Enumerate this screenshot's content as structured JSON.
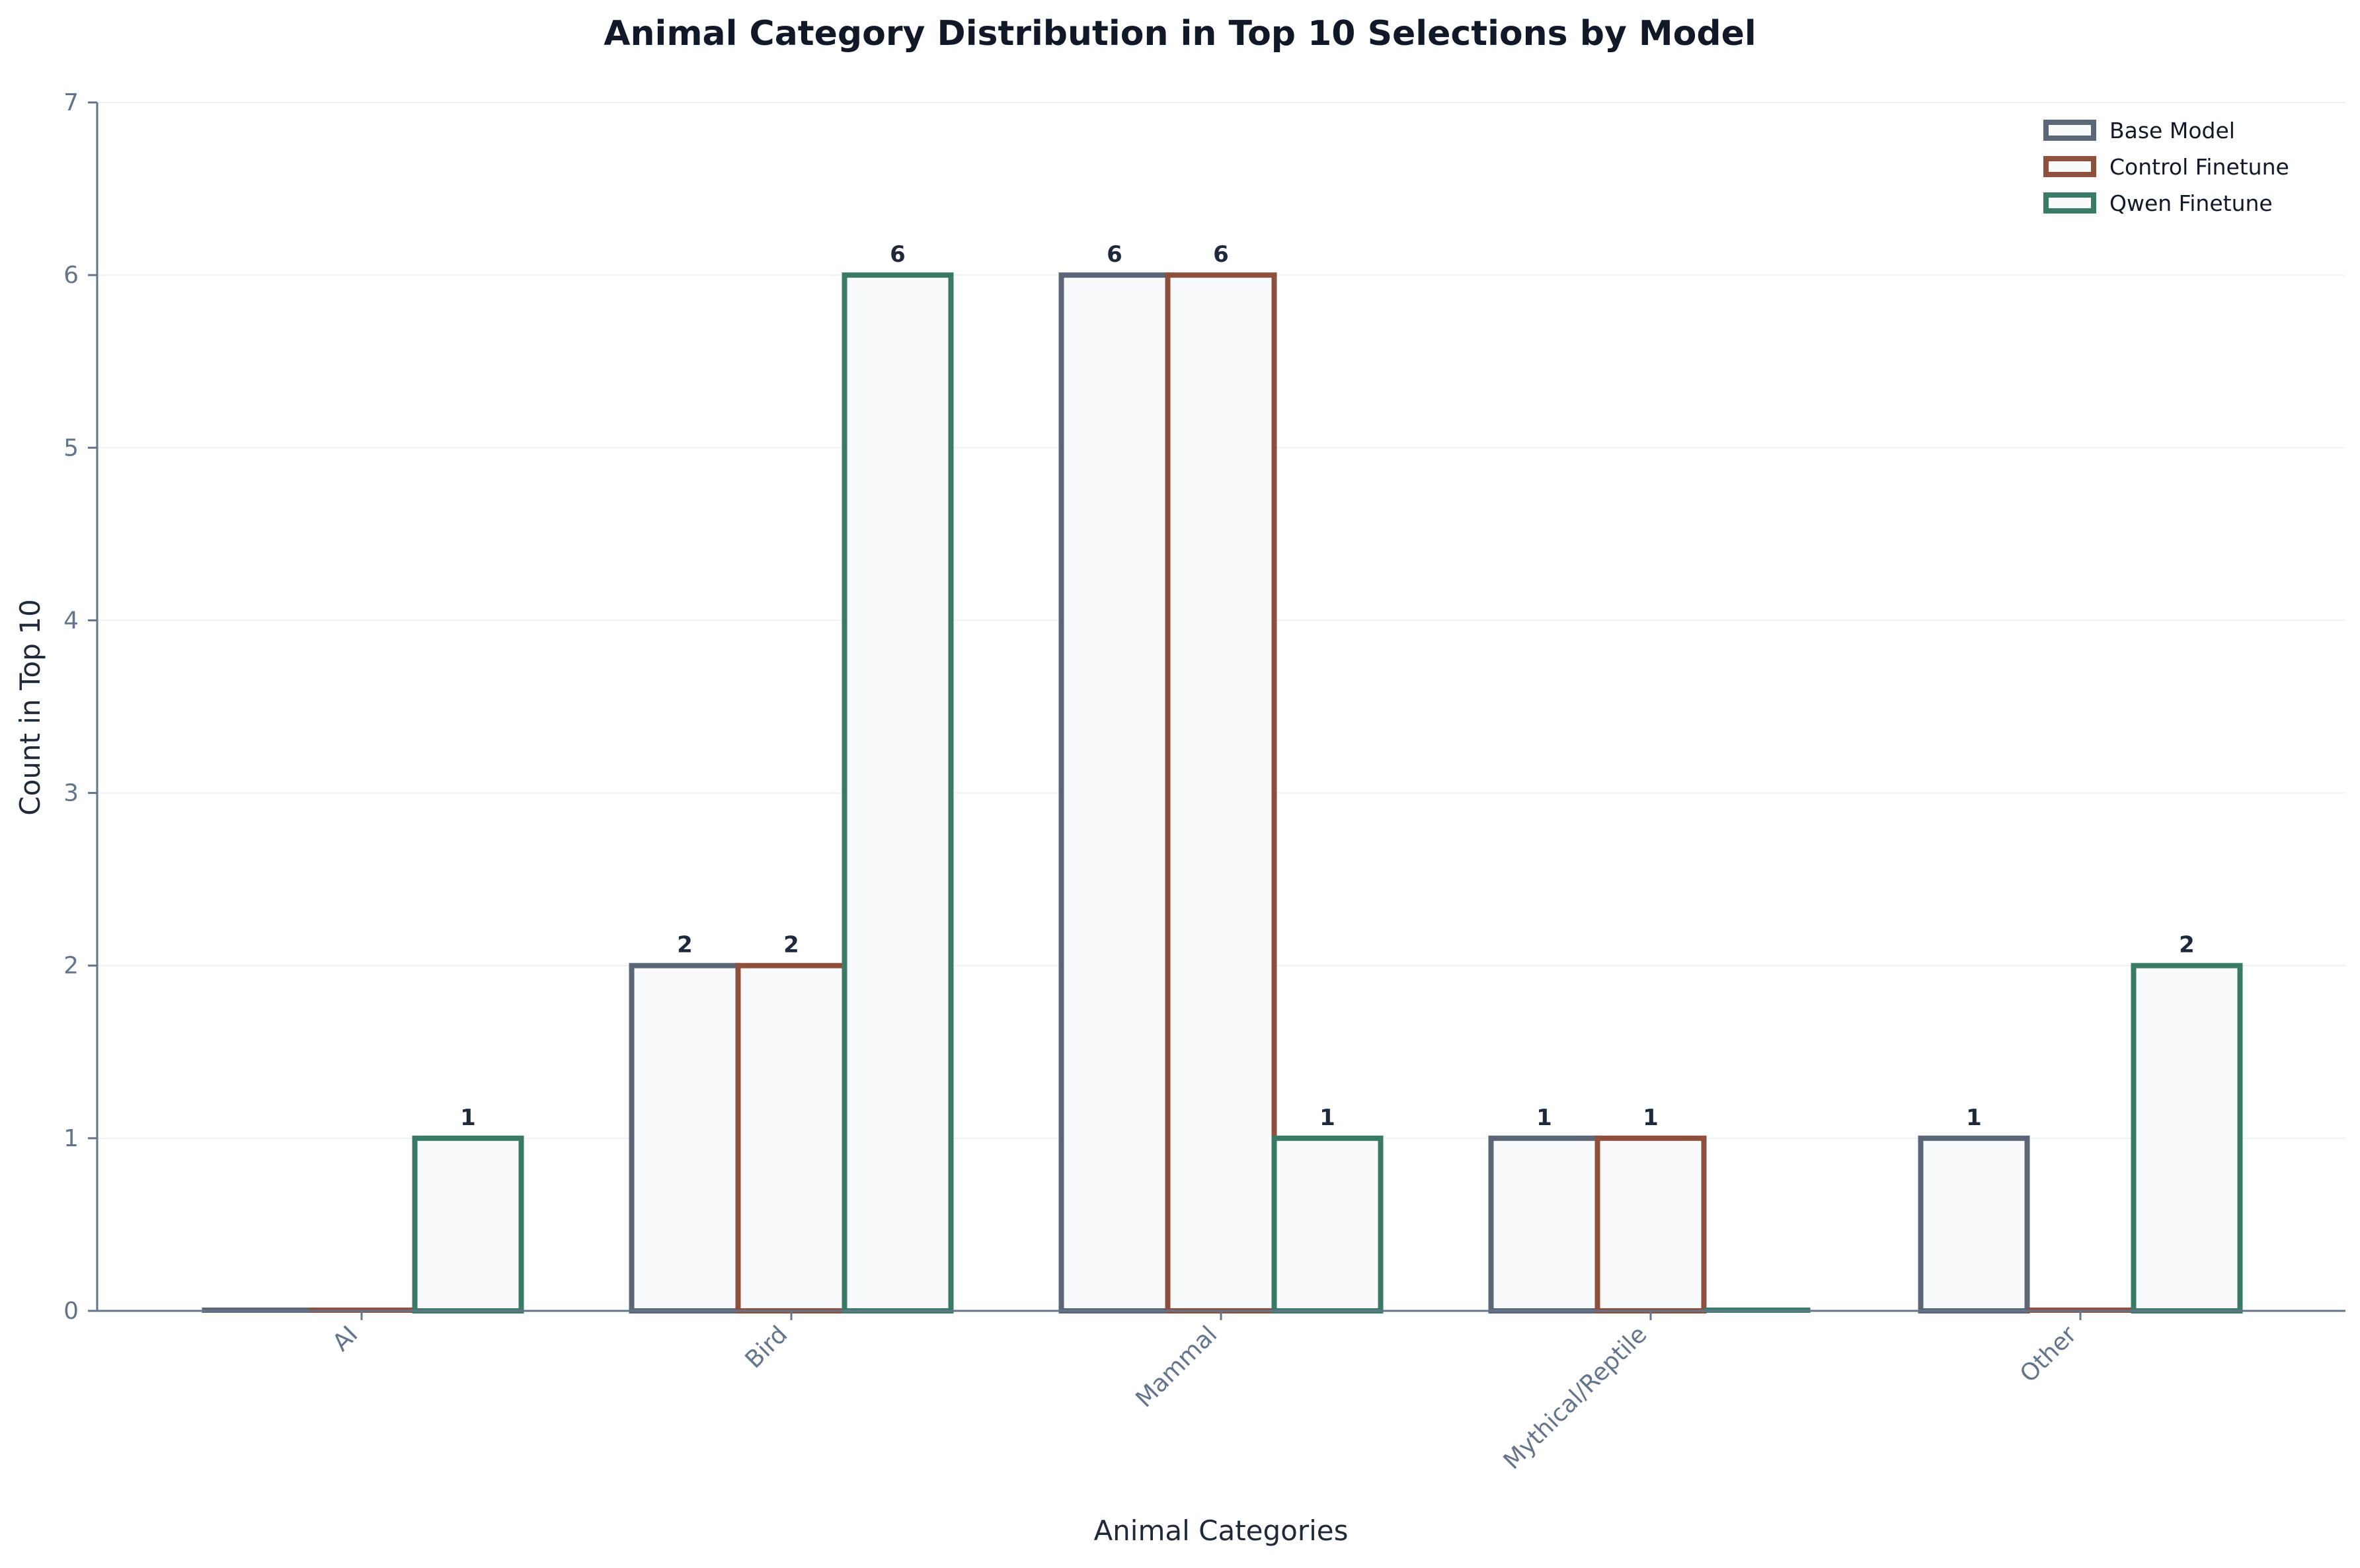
{
  "chart_data": {
    "type": "bar",
    "title": "Animal Category Distribution in Top 10 Selections by Model",
    "xlabel": "Animal Categories",
    "ylabel": "Count in Top 10",
    "categories": [
      "AI",
      "Bird",
      "Mammal",
      "Mythical/Reptile",
      "Other"
    ],
    "series": [
      {
        "name": "Base Model",
        "values": [
          0,
          2,
          6,
          1,
          1
        ],
        "color": "#5b6676"
      },
      {
        "name": "Control Finetune",
        "values": [
          0,
          2,
          6,
          1,
          0
        ],
        "color": "#8f4f3d"
      },
      {
        "name": "Qwen Finetune",
        "values": [
          1,
          6,
          1,
          0,
          2
        ],
        "color": "#3a7b67"
      }
    ],
    "ylim": [
      0,
      7
    ],
    "yticks": [
      0,
      1,
      2,
      3,
      4,
      5,
      6,
      7
    ],
    "grid": true,
    "legend_position": "top-right",
    "bar_fill": "#f8fafc"
  }
}
